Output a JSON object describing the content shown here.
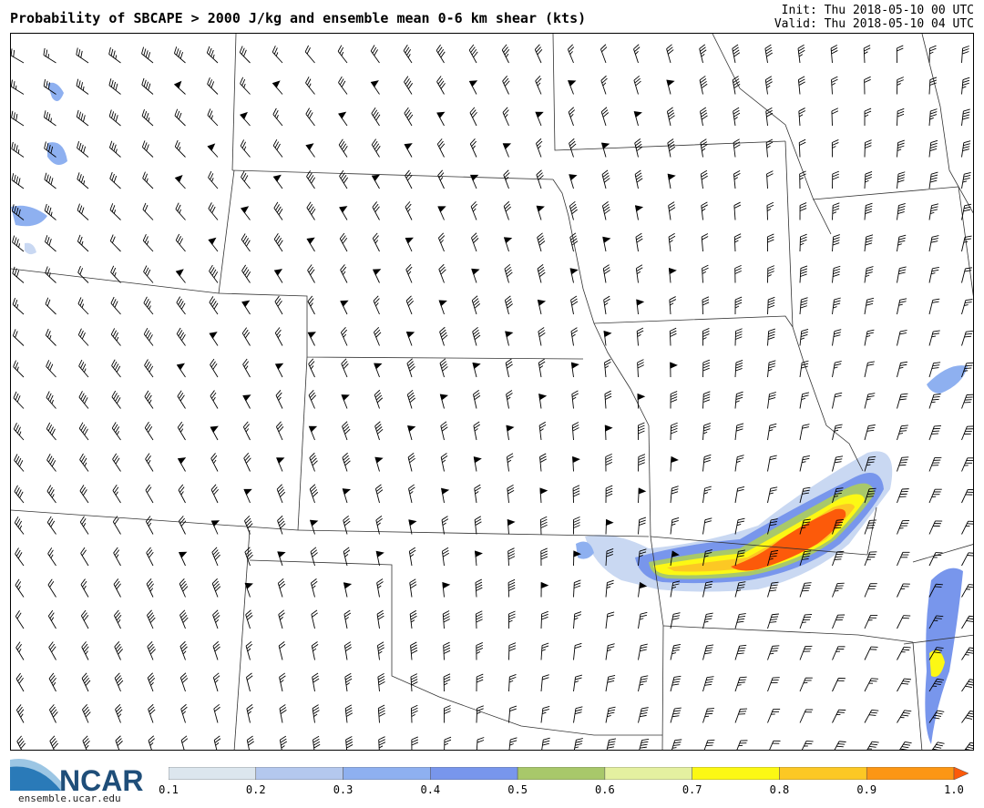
{
  "header": {
    "title": "Probability of SBCAPE > 2000 J/kg and ensemble mean 0-6 km shear (kts)",
    "init": "Init: Thu 2018-05-10 00 UTC",
    "valid": "Valid: Thu 2018-05-10 04 UTC"
  },
  "logo": {
    "text": "NCAR",
    "url": "ensemble.ucar.edu",
    "colors": {
      "swoosh": "#2a7ab8",
      "swoosh_light": "#9cc6e4",
      "text": "#1f4e79"
    }
  },
  "colorbar": {
    "ticks": [
      "0.1",
      "0.2",
      "0.3",
      "0.4",
      "0.5",
      "0.6",
      "0.7",
      "0.8",
      "0.9",
      "1.0"
    ],
    "colors": [
      "#dce6ee",
      "#b4c8ee",
      "#8eb0f0",
      "#7896ec",
      "#a8c86a",
      "#e4f0a0",
      "#fcf814",
      "#fcc824",
      "#fc9614"
    ],
    "extend_color": "#fc5a0a"
  },
  "map": {
    "shading_colors": {
      "p10": "#c9d8f2",
      "p30": "#8eb0f0",
      "p40": "#7896ec",
      "p50": "#a8c86a",
      "p60": "#e4f0a0",
      "p70": "#fcf814",
      "p80": "#fcc824",
      "p90": "#fc9614",
      "p100": "#fc5a0a"
    }
  }
}
